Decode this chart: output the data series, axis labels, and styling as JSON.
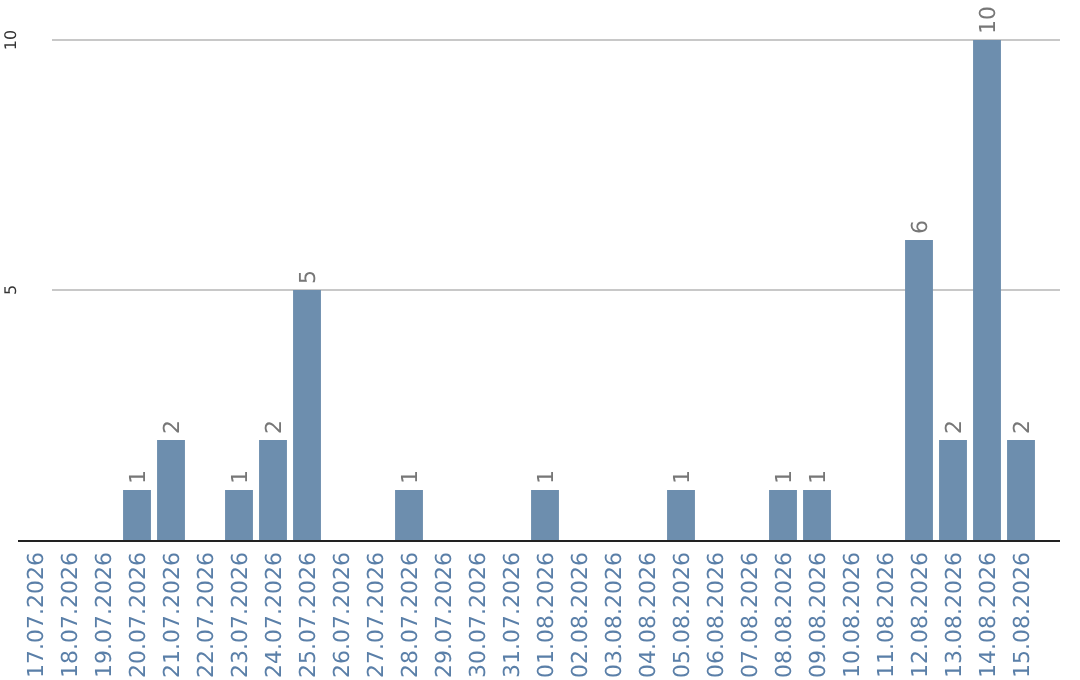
{
  "chart_data": {
    "type": "bar",
    "categories": [
      "17.07.2026",
      "18.07.2026",
      "19.07.2026",
      "20.07.2026",
      "21.07.2026",
      "22.07.2026",
      "23.07.2026",
      "24.07.2026",
      "25.07.2026",
      "26.07.2026",
      "27.07.2026",
      "28.07.2026",
      "29.07.2026",
      "30.07.2026",
      "31.07.2026",
      "01.08.2026",
      "02.08.2026",
      "03.08.2026",
      "04.08.2026",
      "05.08.2026",
      "06.08.2026",
      "07.08.2026",
      "08.08.2026",
      "09.08.2026",
      "10.08.2026",
      "11.08.2026",
      "12.08.2026",
      "13.08.2026",
      "14.08.2026",
      "15.08.2026"
    ],
    "values": [
      null,
      null,
      null,
      1,
      2,
      null,
      1,
      2,
      5,
      null,
      null,
      1,
      null,
      null,
      null,
      1,
      null,
      null,
      null,
      1,
      null,
      null,
      1,
      1,
      null,
      null,
      6,
      2,
      10,
      2
    ],
    "color": "#6d8eae",
    "ylim": [
      0,
      10
    ],
    "yticks": [
      5,
      10
    ],
    "grid": "y",
    "data_labels": true
  }
}
